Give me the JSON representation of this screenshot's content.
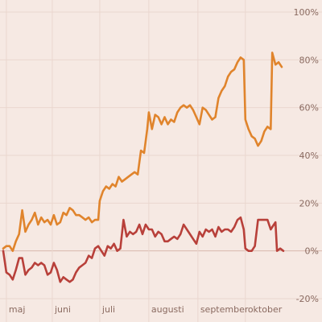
{
  "chart_data": {
    "type": "line",
    "title": "",
    "xlabel": "",
    "ylabel": "",
    "x_domain": [
      "2020-05-01",
      "2020-10-25"
    ],
    "ylim": [
      -20,
      100
    ],
    "yticks": [
      {
        "value": 100,
        "label": "100%"
      },
      {
        "value": 80,
        "label": "80%"
      },
      {
        "value": 60,
        "label": "60%"
      },
      {
        "value": 40,
        "label": "40%"
      },
      {
        "value": 20,
        "label": "20%"
      },
      {
        "value": 0,
        "label": "0%"
      },
      {
        "value": -20,
        "label": "-20%"
      }
    ],
    "xticks": [
      {
        "date": "2020-05-03",
        "label": "maj"
      },
      {
        "date": "2020-06-01",
        "label": "juni"
      },
      {
        "date": "2020-07-01",
        "label": "juli"
      },
      {
        "date": "2020-08-01",
        "label": "augusti"
      },
      {
        "date": "2020-09-01",
        "label": "september"
      },
      {
        "date": "2020-10-01",
        "label": "oktober"
      }
    ],
    "colors": {
      "series_orange": "#e0842c",
      "series_red": "#b8403a",
      "background": "#f6e9e3",
      "grid": "#ead7cf"
    },
    "series": [
      {
        "color": "#e0842c",
        "points": [
          [
            "2020-05-01",
            1
          ],
          [
            "2020-05-03",
            2
          ],
          [
            "2020-05-05",
            2
          ],
          [
            "2020-05-07",
            0
          ],
          [
            "2020-05-09",
            4
          ],
          [
            "2020-05-11",
            7
          ],
          [
            "2020-05-13",
            17
          ],
          [
            "2020-05-15",
            8
          ],
          [
            "2020-05-17",
            11
          ],
          [
            "2020-05-19",
            13
          ],
          [
            "2020-05-21",
            16
          ],
          [
            "2020-05-23",
            11
          ],
          [
            "2020-05-25",
            14
          ],
          [
            "2020-05-27",
            12
          ],
          [
            "2020-05-29",
            13
          ],
          [
            "2020-05-31",
            11
          ],
          [
            "2020-06-02",
            15
          ],
          [
            "2020-06-04",
            11
          ],
          [
            "2020-06-06",
            12
          ],
          [
            "2020-06-08",
            16
          ],
          [
            "2020-06-10",
            15
          ],
          [
            "2020-06-12",
            18
          ],
          [
            "2020-06-14",
            17
          ],
          [
            "2020-06-16",
            15
          ],
          [
            "2020-06-18",
            15
          ],
          [
            "2020-06-20",
            14
          ],
          [
            "2020-06-22",
            13
          ],
          [
            "2020-06-24",
            14
          ],
          [
            "2020-06-26",
            12
          ],
          [
            "2020-06-28",
            13
          ],
          [
            "2020-06-30",
            13
          ],
          [
            "2020-07-01",
            21
          ],
          [
            "2020-07-03",
            25
          ],
          [
            "2020-07-05",
            27
          ],
          [
            "2020-07-07",
            26
          ],
          [
            "2020-07-09",
            28
          ],
          [
            "2020-07-11",
            27
          ],
          [
            "2020-07-13",
            31
          ],
          [
            "2020-07-15",
            29
          ],
          [
            "2020-07-17",
            30
          ],
          [
            "2020-07-19",
            31
          ],
          [
            "2020-07-21",
            32
          ],
          [
            "2020-07-23",
            33
          ],
          [
            "2020-07-25",
            32
          ],
          [
            "2020-07-27",
            42
          ],
          [
            "2020-07-29",
            41
          ],
          [
            "2020-07-31",
            51
          ],
          [
            "2020-08-01",
            58
          ],
          [
            "2020-08-03",
            51
          ],
          [
            "2020-08-05",
            57
          ],
          [
            "2020-08-07",
            56
          ],
          [
            "2020-08-09",
            53
          ],
          [
            "2020-08-11",
            56
          ],
          [
            "2020-08-13",
            53
          ],
          [
            "2020-08-15",
            55
          ],
          [
            "2020-08-17",
            54
          ],
          [
            "2020-08-19",
            58
          ],
          [
            "2020-08-21",
            60
          ],
          [
            "2020-08-23",
            61
          ],
          [
            "2020-08-25",
            60
          ],
          [
            "2020-08-27",
            61
          ],
          [
            "2020-08-29",
            59
          ],
          [
            "2020-08-31",
            56
          ],
          [
            "2020-09-02",
            53
          ],
          [
            "2020-09-04",
            60
          ],
          [
            "2020-09-06",
            59
          ],
          [
            "2020-09-08",
            57
          ],
          [
            "2020-09-10",
            55
          ],
          [
            "2020-09-12",
            56
          ],
          [
            "2020-09-14",
            64
          ],
          [
            "2020-09-16",
            67
          ],
          [
            "2020-09-18",
            69
          ],
          [
            "2020-09-20",
            73
          ],
          [
            "2020-09-22",
            75
          ],
          [
            "2020-09-24",
            76
          ],
          [
            "2020-09-26",
            79
          ],
          [
            "2020-09-28",
            81
          ],
          [
            "2020-09-30",
            80
          ],
          [
            "2020-10-01",
            55
          ],
          [
            "2020-10-03",
            51
          ],
          [
            "2020-10-05",
            48
          ],
          [
            "2020-10-07",
            47
          ],
          [
            "2020-10-09",
            44
          ],
          [
            "2020-10-11",
            46
          ],
          [
            "2020-10-13",
            50
          ],
          [
            "2020-10-15",
            52
          ],
          [
            "2020-10-17",
            51
          ],
          [
            "2020-10-18",
            83
          ],
          [
            "2020-10-20",
            78
          ],
          [
            "2020-10-22",
            79
          ],
          [
            "2020-10-24",
            77
          ]
        ]
      },
      {
        "color": "#b8403a",
        "points": [
          [
            "2020-05-01",
            0
          ],
          [
            "2020-05-03",
            -9
          ],
          [
            "2020-05-05",
            -10
          ],
          [
            "2020-05-07",
            -12
          ],
          [
            "2020-05-09",
            -8
          ],
          [
            "2020-05-11",
            -3
          ],
          [
            "2020-05-13",
            -3
          ],
          [
            "2020-05-15",
            -10
          ],
          [
            "2020-05-17",
            -8
          ],
          [
            "2020-05-19",
            -7
          ],
          [
            "2020-05-21",
            -5
          ],
          [
            "2020-05-23",
            -6
          ],
          [
            "2020-05-25",
            -5
          ],
          [
            "2020-05-27",
            -6
          ],
          [
            "2020-05-29",
            -10
          ],
          [
            "2020-05-31",
            -9
          ],
          [
            "2020-06-02",
            -5
          ],
          [
            "2020-06-04",
            -8
          ],
          [
            "2020-06-06",
            -13
          ],
          [
            "2020-06-08",
            -11
          ],
          [
            "2020-06-10",
            -12
          ],
          [
            "2020-06-12",
            -13
          ],
          [
            "2020-06-14",
            -12
          ],
          [
            "2020-06-16",
            -9
          ],
          [
            "2020-06-18",
            -7
          ],
          [
            "2020-06-20",
            -6
          ],
          [
            "2020-06-22",
            -5
          ],
          [
            "2020-06-24",
            -2
          ],
          [
            "2020-06-26",
            -3
          ],
          [
            "2020-06-28",
            1
          ],
          [
            "2020-06-30",
            2
          ],
          [
            "2020-07-02",
            0
          ],
          [
            "2020-07-04",
            -2
          ],
          [
            "2020-07-06",
            2
          ],
          [
            "2020-07-08",
            1
          ],
          [
            "2020-07-10",
            3
          ],
          [
            "2020-07-12",
            0
          ],
          [
            "2020-07-14",
            1
          ],
          [
            "2020-07-16",
            13
          ],
          [
            "2020-07-18",
            6
          ],
          [
            "2020-07-20",
            8
          ],
          [
            "2020-07-22",
            7
          ],
          [
            "2020-07-24",
            8
          ],
          [
            "2020-07-26",
            11
          ],
          [
            "2020-07-28",
            7
          ],
          [
            "2020-07-30",
            11
          ],
          [
            "2020-08-01",
            9
          ],
          [
            "2020-08-03",
            9
          ],
          [
            "2020-08-05",
            6
          ],
          [
            "2020-08-07",
            8
          ],
          [
            "2020-08-09",
            7
          ],
          [
            "2020-08-11",
            4
          ],
          [
            "2020-08-13",
            4
          ],
          [
            "2020-08-15",
            5
          ],
          [
            "2020-08-17",
            6
          ],
          [
            "2020-08-19",
            5
          ],
          [
            "2020-08-21",
            7
          ],
          [
            "2020-08-23",
            11
          ],
          [
            "2020-08-25",
            9
          ],
          [
            "2020-08-27",
            7
          ],
          [
            "2020-08-29",
            5
          ],
          [
            "2020-08-31",
            3
          ],
          [
            "2020-09-02",
            8
          ],
          [
            "2020-09-04",
            6
          ],
          [
            "2020-09-06",
            9
          ],
          [
            "2020-09-08",
            8
          ],
          [
            "2020-09-10",
            9
          ],
          [
            "2020-09-12",
            6
          ],
          [
            "2020-09-14",
            10
          ],
          [
            "2020-09-16",
            8
          ],
          [
            "2020-09-18",
            9
          ],
          [
            "2020-09-20",
            9
          ],
          [
            "2020-09-22",
            8
          ],
          [
            "2020-09-24",
            10
          ],
          [
            "2020-09-26",
            13
          ],
          [
            "2020-09-28",
            14
          ],
          [
            "2020-09-30",
            9
          ],
          [
            "2020-10-01",
            1
          ],
          [
            "2020-10-03",
            0
          ],
          [
            "2020-10-05",
            0
          ],
          [
            "2020-10-07",
            2
          ],
          [
            "2020-10-09",
            13
          ],
          [
            "2020-10-11",
            13
          ],
          [
            "2020-10-13",
            13
          ],
          [
            "2020-10-15",
            13
          ],
          [
            "2020-10-17",
            9
          ],
          [
            "2020-10-19",
            11
          ],
          [
            "2020-10-20",
            12
          ],
          [
            "2020-10-21",
            0
          ],
          [
            "2020-10-23",
            1
          ],
          [
            "2020-10-25",
            0
          ]
        ]
      }
    ]
  }
}
